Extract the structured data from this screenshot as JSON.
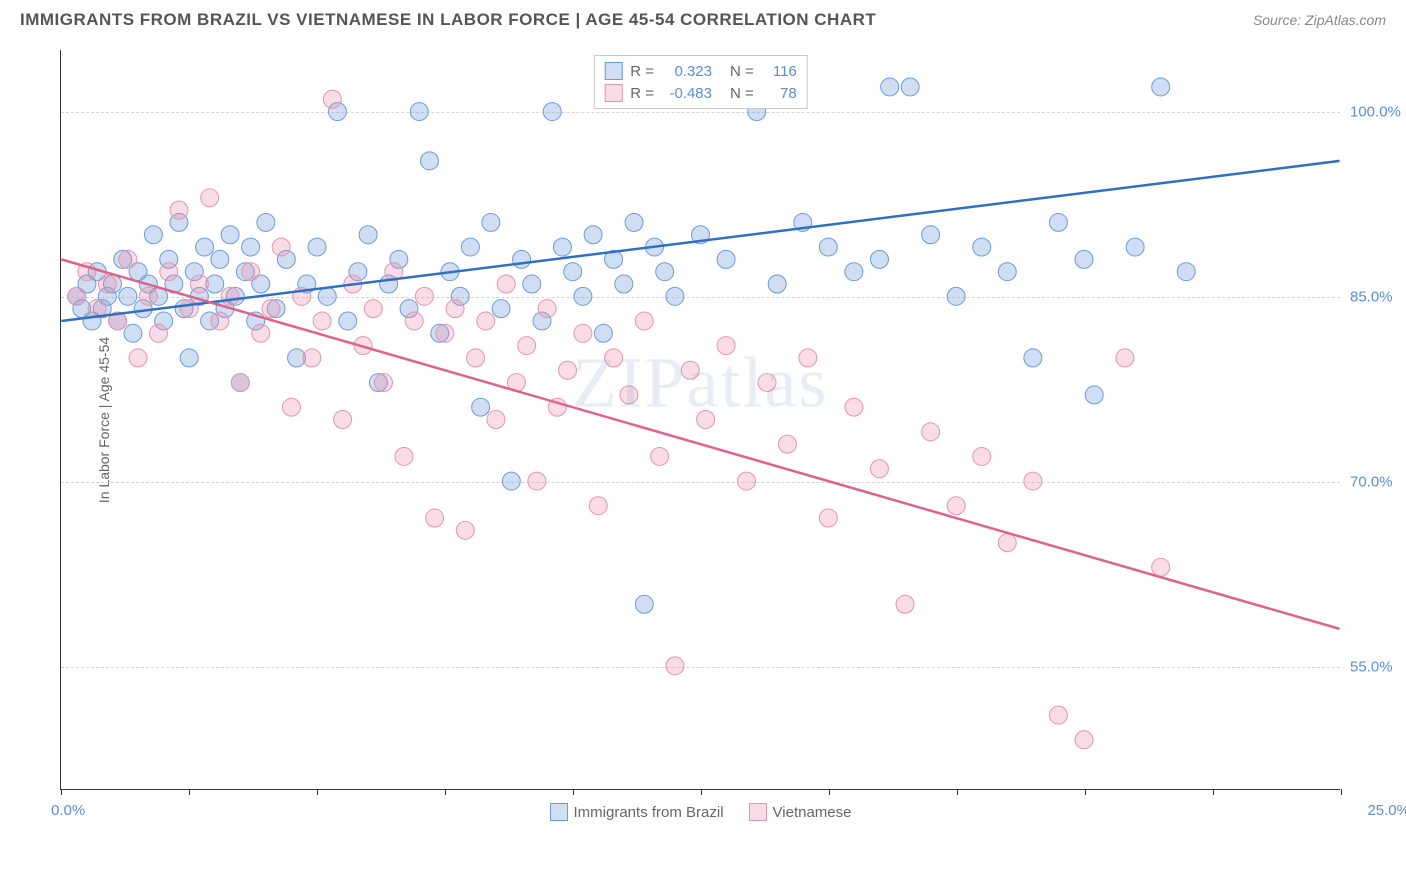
{
  "header": {
    "title": "IMMIGRANTS FROM BRAZIL VS VIETNAMESE IN LABOR FORCE | AGE 45-54 CORRELATION CHART",
    "source": "Source: ZipAtlas.com"
  },
  "chart": {
    "type": "scatter",
    "ylabel": "In Labor Force | Age 45-54",
    "watermark": "ZIPatlas",
    "xlim": [
      0,
      25
    ],
    "ylim": [
      45,
      105
    ],
    "yticks": [
      {
        "v": 100,
        "label": "100.0%"
      },
      {
        "v": 85,
        "label": "85.0%"
      },
      {
        "v": 70,
        "label": "70.0%"
      },
      {
        "v": 55,
        "label": "55.0%"
      }
    ],
    "xtick_positions": [
      0,
      2.5,
      5,
      7.5,
      10,
      12.5,
      15,
      17.5,
      20,
      22.5,
      25
    ],
    "xtick_label_left": "0.0%",
    "xtick_label_right": "25.0%",
    "grid_color": "#d5d5d5",
    "background_color": "#ffffff",
    "series": [
      {
        "id": "brazil",
        "label": "Immigrants from Brazil",
        "color_fill": "rgba(120,160,220,0.35)",
        "color_stroke": "#6a9bd8",
        "line_color": "#2f6fc4",
        "marker_radius": 9,
        "R": "0.323",
        "N": "116",
        "trend": {
          "x1": 0,
          "y1": 83,
          "x2": 25,
          "y2": 96
        },
        "points": [
          [
            0.3,
            85
          ],
          [
            0.4,
            84
          ],
          [
            0.5,
            86
          ],
          [
            0.6,
            83
          ],
          [
            0.7,
            87
          ],
          [
            0.8,
            84
          ],
          [
            0.9,
            85
          ],
          [
            1.0,
            86
          ],
          [
            1.1,
            83
          ],
          [
            1.2,
            88
          ],
          [
            1.3,
            85
          ],
          [
            1.4,
            82
          ],
          [
            1.5,
            87
          ],
          [
            1.6,
            84
          ],
          [
            1.7,
            86
          ],
          [
            1.8,
            90
          ],
          [
            1.9,
            85
          ],
          [
            2.0,
            83
          ],
          [
            2.1,
            88
          ],
          [
            2.2,
            86
          ],
          [
            2.3,
            91
          ],
          [
            2.4,
            84
          ],
          [
            2.5,
            80
          ],
          [
            2.6,
            87
          ],
          [
            2.7,
            85
          ],
          [
            2.8,
            89
          ],
          [
            2.9,
            83
          ],
          [
            3.0,
            86
          ],
          [
            3.1,
            88
          ],
          [
            3.2,
            84
          ],
          [
            3.3,
            90
          ],
          [
            3.4,
            85
          ],
          [
            3.5,
            78
          ],
          [
            3.6,
            87
          ],
          [
            3.7,
            89
          ],
          [
            3.8,
            83
          ],
          [
            3.9,
            86
          ],
          [
            4.0,
            91
          ],
          [
            4.2,
            84
          ],
          [
            4.4,
            88
          ],
          [
            4.6,
            80
          ],
          [
            4.8,
            86
          ],
          [
            5.0,
            89
          ],
          [
            5.2,
            85
          ],
          [
            5.4,
            100
          ],
          [
            5.6,
            83
          ],
          [
            5.8,
            87
          ],
          [
            6.0,
            90
          ],
          [
            6.2,
            78
          ],
          [
            6.4,
            86
          ],
          [
            6.6,
            88
          ],
          [
            6.8,
            84
          ],
          [
            7.0,
            100
          ],
          [
            7.2,
            96
          ],
          [
            7.4,
            82
          ],
          [
            7.6,
            87
          ],
          [
            7.8,
            85
          ],
          [
            8.0,
            89
          ],
          [
            8.2,
            76
          ],
          [
            8.4,
            91
          ],
          [
            8.6,
            84
          ],
          [
            8.8,
            70
          ],
          [
            9.0,
            88
          ],
          [
            9.2,
            86
          ],
          [
            9.4,
            83
          ],
          [
            9.6,
            100
          ],
          [
            9.8,
            89
          ],
          [
            10.0,
            87
          ],
          [
            10.2,
            85
          ],
          [
            10.4,
            90
          ],
          [
            10.6,
            82
          ],
          [
            10.8,
            88
          ],
          [
            11.0,
            86
          ],
          [
            11.2,
            91
          ],
          [
            11.4,
            60
          ],
          [
            11.6,
            89
          ],
          [
            11.8,
            87
          ],
          [
            12.0,
            85
          ],
          [
            12.5,
            90
          ],
          [
            13.0,
            88
          ],
          [
            13.2,
            102
          ],
          [
            13.4,
            102
          ],
          [
            13.6,
            100
          ],
          [
            14.0,
            86
          ],
          [
            14.5,
            91
          ],
          [
            15.0,
            89
          ],
          [
            15.5,
            87
          ],
          [
            16.0,
            88
          ],
          [
            16.2,
            102
          ],
          [
            16.6,
            102
          ],
          [
            17.0,
            90
          ],
          [
            17.5,
            85
          ],
          [
            18.0,
            89
          ],
          [
            18.5,
            87
          ],
          [
            19.0,
            80
          ],
          [
            19.5,
            91
          ],
          [
            20.0,
            88
          ],
          [
            20.2,
            77
          ],
          [
            21.0,
            89
          ],
          [
            21.5,
            102
          ],
          [
            22.0,
            87
          ]
        ]
      },
      {
        "id": "vietnamese",
        "label": "Vietnamese",
        "color_fill": "rgba(235,140,170,0.30)",
        "color_stroke": "#e295ae",
        "line_color": "#e0628c",
        "marker_radius": 9,
        "R": "-0.483",
        "N": "78",
        "trend": {
          "x1": 0,
          "y1": 88,
          "x2": 25,
          "y2": 58
        },
        "points": [
          [
            0.3,
            85
          ],
          [
            0.5,
            87
          ],
          [
            0.7,
            84
          ],
          [
            0.9,
            86
          ],
          [
            1.1,
            83
          ],
          [
            1.3,
            88
          ],
          [
            1.5,
            80
          ],
          [
            1.7,
            85
          ],
          [
            1.9,
            82
          ],
          [
            2.1,
            87
          ],
          [
            2.3,
            92
          ],
          [
            2.5,
            84
          ],
          [
            2.7,
            86
          ],
          [
            2.9,
            93
          ],
          [
            3.1,
            83
          ],
          [
            3.3,
            85
          ],
          [
            3.5,
            78
          ],
          [
            3.7,
            87
          ],
          [
            3.9,
            82
          ],
          [
            4.1,
            84
          ],
          [
            4.3,
            89
          ],
          [
            4.5,
            76
          ],
          [
            4.7,
            85
          ],
          [
            4.9,
            80
          ],
          [
            5.1,
            83
          ],
          [
            5.3,
            101
          ],
          [
            5.5,
            75
          ],
          [
            5.7,
            86
          ],
          [
            5.9,
            81
          ],
          [
            6.1,
            84
          ],
          [
            6.3,
            78
          ],
          [
            6.5,
            87
          ],
          [
            6.7,
            72
          ],
          [
            6.9,
            83
          ],
          [
            7.1,
            85
          ],
          [
            7.3,
            67
          ],
          [
            7.5,
            82
          ],
          [
            7.7,
            84
          ],
          [
            7.9,
            66
          ],
          [
            8.1,
            80
          ],
          [
            8.3,
            83
          ],
          [
            8.5,
            75
          ],
          [
            8.7,
            86
          ],
          [
            8.9,
            78
          ],
          [
            9.1,
            81
          ],
          [
            9.3,
            70
          ],
          [
            9.5,
            84
          ],
          [
            9.7,
            76
          ],
          [
            9.9,
            79
          ],
          [
            10.2,
            82
          ],
          [
            10.5,
            68
          ],
          [
            10.8,
            80
          ],
          [
            11.1,
            77
          ],
          [
            11.4,
            83
          ],
          [
            11.7,
            72
          ],
          [
            12.0,
            55
          ],
          [
            12.3,
            79
          ],
          [
            12.6,
            75
          ],
          [
            13.0,
            81
          ],
          [
            13.4,
            70
          ],
          [
            13.8,
            78
          ],
          [
            14.2,
            73
          ],
          [
            14.6,
            80
          ],
          [
            15.0,
            67
          ],
          [
            15.5,
            76
          ],
          [
            16.0,
            71
          ],
          [
            16.5,
            60
          ],
          [
            17.0,
            74
          ],
          [
            17.5,
            68
          ],
          [
            18.0,
            72
          ],
          [
            18.5,
            65
          ],
          [
            19.0,
            70
          ],
          [
            19.5,
            51
          ],
          [
            20.0,
            49
          ],
          [
            20.8,
            80
          ],
          [
            21.5,
            63
          ]
        ]
      }
    ],
    "legend_top": {
      "rows": [
        {
          "swatch_fill": "rgba(120,160,220,0.35)",
          "swatch_stroke": "#6a9bd8",
          "r_label": "R =",
          "r_val": "0.323",
          "n_label": "N =",
          "n_val": "116"
        },
        {
          "swatch_fill": "rgba(235,140,170,0.30)",
          "swatch_stroke": "#e295ae",
          "r_label": "R =",
          "r_val": "-0.483",
          "n_label": "N =",
          "n_val": "78"
        }
      ]
    },
    "legend_bottom": [
      {
        "swatch_fill": "rgba(120,160,220,0.35)",
        "swatch_stroke": "#6a9bd8",
        "label": "Immigrants from Brazil"
      },
      {
        "swatch_fill": "rgba(235,140,170,0.30)",
        "swatch_stroke": "#e295ae",
        "label": "Vietnamese"
      }
    ]
  }
}
